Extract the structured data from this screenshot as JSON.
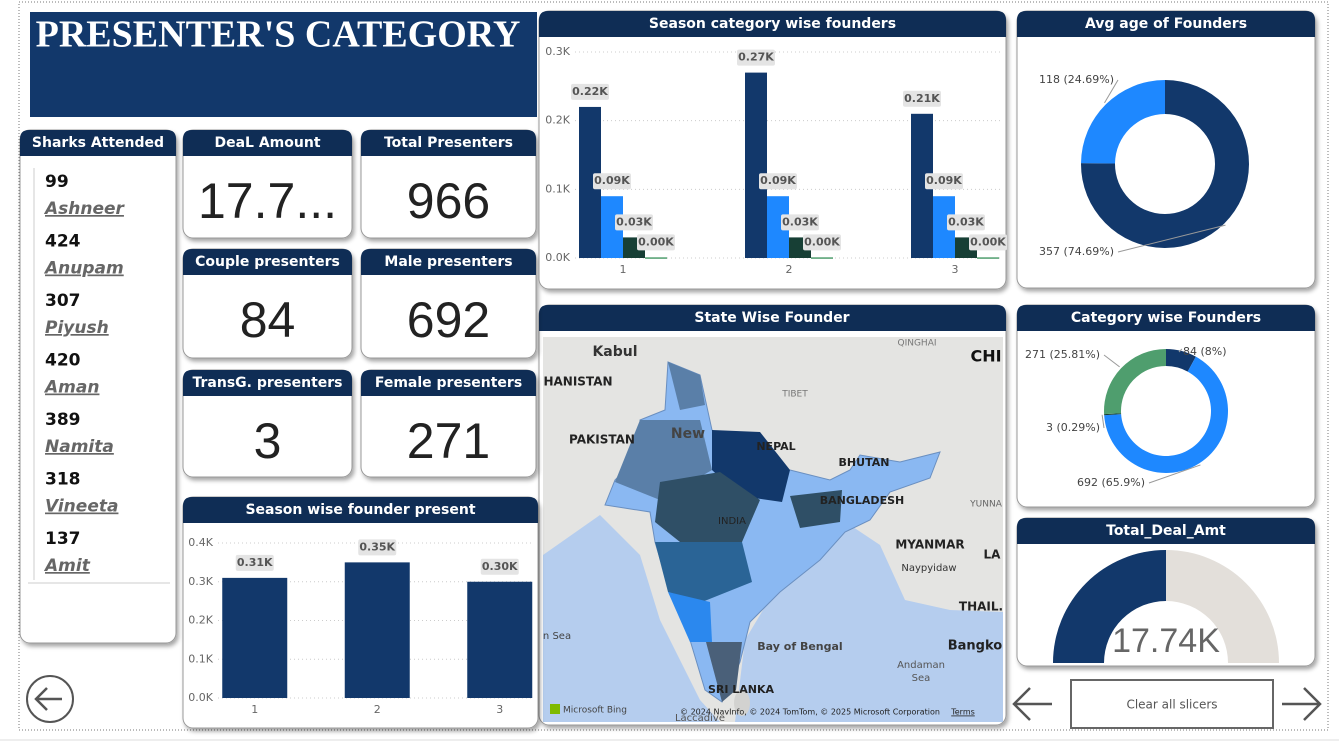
{
  "header": {
    "title": "PRESENTER'S CATEGORY"
  },
  "sharks": {
    "title": "Sharks Attended",
    "items": [
      {
        "count": 99,
        "name": "Ashneer"
      },
      {
        "count": 424,
        "name": "Anupam"
      },
      {
        "count": 307,
        "name": "Piyush"
      },
      {
        "count": 420,
        "name": "Aman"
      },
      {
        "count": 389,
        "name": "Namita"
      },
      {
        "count": 318,
        "name": "Vineeta"
      },
      {
        "count": 137,
        "name": "Amit"
      }
    ]
  },
  "cards": [
    {
      "title": "DeaL Amount",
      "value": "17.7..."
    },
    {
      "title": "Total Presenters",
      "value": 966
    },
    {
      "title": "Couple presenters",
      "value": 84
    },
    {
      "title": "Male presenters",
      "value": 692
    },
    {
      "title": "TransG. presenters",
      "value": 3
    },
    {
      "title": "Female presenters",
      "value": 271
    }
  ],
  "map": {
    "title": "State Wise Founder",
    "labels": [
      "Kabul",
      "HANISTAN",
      "PAKISTAN",
      "New",
      "TIBET",
      "QINGHAI",
      "CHI",
      "NEPAL",
      "BHUTAN",
      "BANGLADESH",
      "INDIA",
      "MYANMAR",
      "Naypyidaw",
      "YUNNA",
      "LA",
      "THAIL.",
      "Bangko",
      "Bay of Bengal",
      "Andaman",
      "Sea",
      "SRI LANKA",
      "n Sea",
      "Laccadive"
    ],
    "brand": "Microsoft Bing",
    "attribution": "© 2024 NavInfo, © 2024 TomTom, © 2025 Microsoft Corporation",
    "terms": "Terms"
  },
  "controls": {
    "clear": "Clear all slicers"
  },
  "chart_data": [
    {
      "type": "bar",
      "title": "Season category wise founders",
      "categories": [
        "1",
        "2",
        "3"
      ],
      "ylim": [
        0,
        300
      ],
      "yticks": [
        {
          "value": 0,
          "label": "0.0K"
        },
        {
          "value": 100,
          "label": "0.1K"
        },
        {
          "value": 200,
          "label": "0.2K"
        },
        {
          "value": 300,
          "label": "0.3K"
        }
      ],
      "grid": true,
      "series": [
        {
          "color": "#12386b",
          "values": [
            220,
            270,
            210
          ],
          "value_labels": [
            "0.22K",
            "0.27K",
            "0.21K"
          ]
        },
        {
          "color": "#1e88ff",
          "values": [
            90,
            90,
            90
          ],
          "value_labels": [
            "0.09K",
            "0.09K",
            "0.09K"
          ]
        },
        {
          "color": "#173f35",
          "values": [
            30,
            30,
            30
          ],
          "value_labels": [
            "0.03K",
            "0.03K",
            "0.03K"
          ]
        },
        {
          "color": "#4f9e6e",
          "values": [
            1,
            1,
            1
          ],
          "value_labels": [
            "0.00K",
            "0.00K",
            "0.00K"
          ]
        }
      ]
    },
    {
      "type": "donut",
      "title": "Avg age of Founders",
      "values": [
        357,
        118
      ],
      "value_labels": [
        "357 (74.69%)",
        "118 (24.69%)"
      ],
      "colors": [
        "#12386b",
        "#1e88ff"
      ]
    },
    {
      "type": "donut",
      "title": "Category wise Founders",
      "values": [
        84,
        692,
        3,
        271
      ],
      "value_labels": [
        "84 (8%)",
        "692 (65.9%)",
        "3 (0.29%)",
        "271 (25.81%)"
      ],
      "colors": [
        "#12386b",
        "#1e88ff",
        "#173f35",
        "#4f9e6e"
      ]
    },
    {
      "type": "bar",
      "title": "Season wise founder present",
      "categories": [
        "1",
        "2",
        "3"
      ],
      "ylim": [
        0,
        400
      ],
      "yticks": [
        {
          "value": 0,
          "label": "0.0K"
        },
        {
          "value": 100,
          "label": "0.1K"
        },
        {
          "value": 200,
          "label": "0.2K"
        },
        {
          "value": 300,
          "label": "0.3K"
        },
        {
          "value": 400,
          "label": "0.4K"
        }
      ],
      "grid": true,
      "series": [
        {
          "color": "#12386b",
          "values": [
            310,
            350,
            300
          ],
          "value_labels": [
            "0.31K",
            "0.35K",
            "0.30K"
          ]
        }
      ]
    },
    {
      "type": "gauge",
      "title": "Total_Deal_Amt",
      "values": [
        17740
      ],
      "value_labels": [
        "17.74K"
      ],
      "ylim": [
        0,
        35480
      ],
      "colors": [
        "#12386b",
        "#e3dfda"
      ]
    }
  ]
}
